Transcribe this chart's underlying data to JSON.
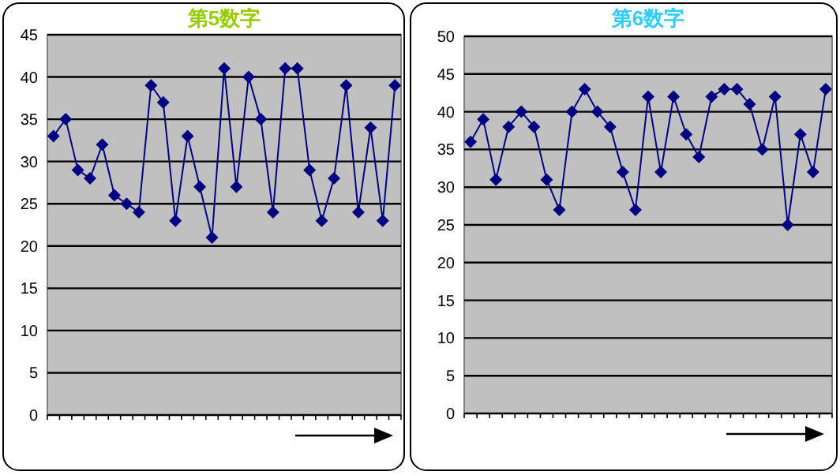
{
  "chart_data": [
    {
      "type": "line",
      "title": "第5数字",
      "categories": [
        null,
        null,
        null,
        null,
        null,
        null,
        null,
        null,
        null,
        null,
        null,
        null,
        null,
        null,
        null,
        null,
        null,
        null,
        null,
        null,
        null,
        null,
        null,
        null,
        null,
        null,
        null,
        null,
        null
      ],
      "series": [
        {
          "color": "#000080",
          "values": [
            33,
            35,
            29,
            28,
            32,
            26,
            25,
            24,
            39,
            37,
            23,
            33,
            27,
            21,
            41,
            27,
            40,
            35,
            24,
            41,
            41,
            29,
            23,
            28,
            39,
            24,
            34,
            23,
            39
          ]
        }
      ],
      "ylim": [
        0,
        45
      ],
      "yticks": [
        0,
        5,
        10,
        15,
        20,
        25,
        30,
        35,
        40,
        45
      ],
      "grid": "y",
      "marker": "diamond",
      "tick_labels": "y"
    },
    {
      "type": "line",
      "title": "第6数字",
      "categories": [
        null,
        null,
        null,
        null,
        null,
        null,
        null,
        null,
        null,
        null,
        null,
        null,
        null,
        null,
        null,
        null,
        null,
        null,
        null,
        null,
        null,
        null,
        null,
        null,
        null,
        null,
        null,
        null,
        null
      ],
      "series": [
        {
          "color": "#000080",
          "values": [
            36,
            39,
            31,
            38,
            40,
            38,
            31,
            27,
            40,
            43,
            40,
            38,
            32,
            27,
            42,
            32,
            42,
            37,
            34,
            42,
            43,
            43,
            41,
            35,
            42,
            25,
            37,
            32,
            43
          ]
        }
      ],
      "ylim": [
        0,
        50
      ],
      "yticks": [
        0,
        5,
        10,
        15,
        20,
        25,
        30,
        35,
        40,
        45,
        50
      ],
      "grid": "y",
      "marker": "diamond",
      "tick_labels": "y"
    }
  ]
}
